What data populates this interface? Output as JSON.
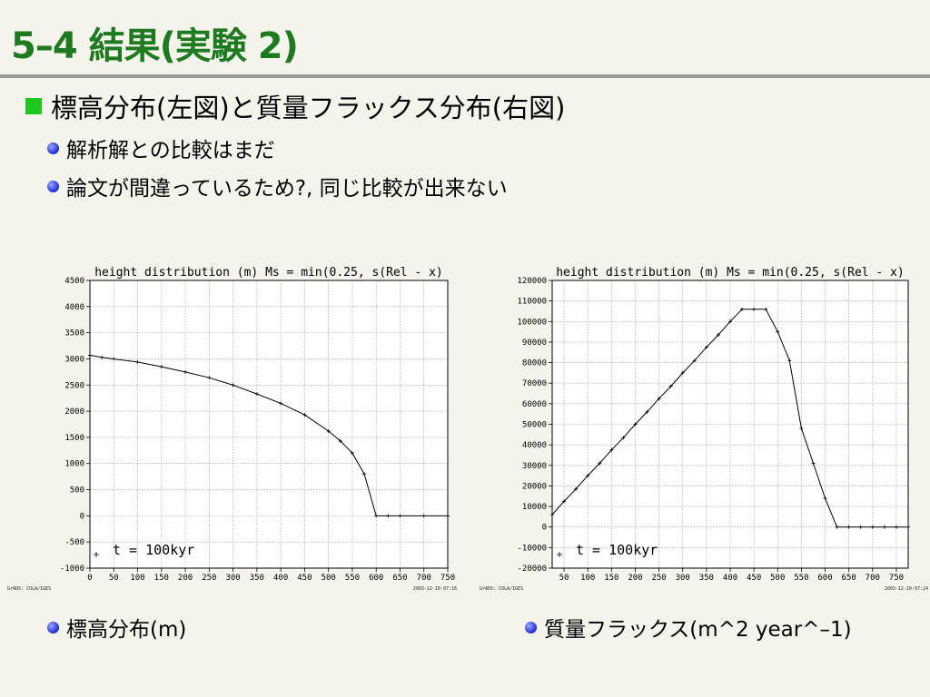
{
  "slide": {
    "title": "5–4  結果(実験 2)",
    "bullet_main": "標高分布(左図)と質量フラックス分布(右図)",
    "sub_bullets": [
      "解析解との比較はまだ",
      "論文が間違っているため?, 同じ比較が出来ない"
    ],
    "captions": [
      "標高分布(m)",
      "質量フラックス(m^2 year^–1)"
    ]
  },
  "chart_data": [
    {
      "type": "line",
      "title": "height distribution (m) Ms = min(0.25, s(Rel - x)",
      "annotation": "t = 100kyr",
      "credit_left": "GrADS: COLA/IGES",
      "credit_right": "2003-12-10-07:16",
      "xlim": [
        0,
        750
      ],
      "ylim": [
        -1000,
        4500
      ],
      "xticks": [
        0,
        50,
        100,
        150,
        200,
        250,
        300,
        350,
        400,
        450,
        500,
        550,
        600,
        650,
        700,
        750
      ],
      "yticks": [
        -1000,
        -500,
        0,
        500,
        1000,
        1500,
        2000,
        2500,
        3000,
        3500,
        4000,
        4500
      ],
      "xtick_labels": [
        "0",
        "50",
        "100",
        "150",
        "200",
        "250",
        "300",
        "350",
        "400",
        "450",
        "500",
        "550",
        "600",
        "650",
        "700",
        "750"
      ],
      "ytick_labels": [
        "-1000",
        "-500",
        "0",
        "500",
        "1000",
        "1500",
        "2000",
        "2500",
        "3000",
        "3500",
        "4000",
        "4500"
      ],
      "grid": true,
      "x": [
        0,
        25,
        50,
        100,
        150,
        200,
        250,
        300,
        350,
        400,
        450,
        500,
        525,
        550,
        575,
        600,
        625,
        650,
        700,
        750
      ],
      "values": [
        3070,
        3030,
        3000,
        2940,
        2850,
        2750,
        2640,
        2500,
        2330,
        2150,
        1930,
        1620,
        1430,
        1200,
        800,
        0,
        0,
        0,
        0,
        0
      ]
    },
    {
      "type": "line",
      "title": "height distribution (m) Ms = min(0.25, s(Rel - x)",
      "annotation": "t = 100kyr",
      "credit_left": "GrADS: COLA/IGES",
      "credit_right": "2003-12-10-07:24",
      "xlim": [
        25,
        775
      ],
      "ylim": [
        -20000,
        120000
      ],
      "xticks": [
        50,
        100,
        150,
        200,
        250,
        300,
        350,
        400,
        450,
        500,
        550,
        600,
        650,
        700,
        750
      ],
      "yticks": [
        -20000,
        -10000,
        0,
        10000,
        20000,
        30000,
        40000,
        50000,
        60000,
        70000,
        80000,
        90000,
        100000,
        110000,
        120000
      ],
      "xtick_labels": [
        "50",
        "100",
        "150",
        "200",
        "250",
        "300",
        "350",
        "400",
        "450",
        "500",
        "550",
        "600",
        "650",
        "700",
        "750"
      ],
      "ytick_labels": [
        "-20000",
        "-10000",
        "0",
        "10000",
        "20000",
        "30000",
        "40000",
        "50000",
        "60000",
        "70000",
        "80000",
        "90000",
        "100000",
        "110000",
        "120000"
      ],
      "grid": true,
      "x": [
        25,
        50,
        75,
        100,
        125,
        150,
        175,
        200,
        225,
        250,
        275,
        300,
        325,
        350,
        375,
        400,
        425,
        450,
        475,
        500,
        525,
        550,
        575,
        600,
        625,
        650,
        675,
        700,
        725,
        750,
        775
      ],
      "values": [
        6000,
        12500,
        18500,
        25000,
        31000,
        37500,
        43500,
        50000,
        56000,
        62500,
        68500,
        75000,
        81000,
        87500,
        93500,
        100000,
        106000,
        106000,
        106000,
        95000,
        81000,
        48000,
        31000,
        14000,
        0,
        0,
        0,
        0,
        0,
        0,
        0
      ]
    }
  ]
}
